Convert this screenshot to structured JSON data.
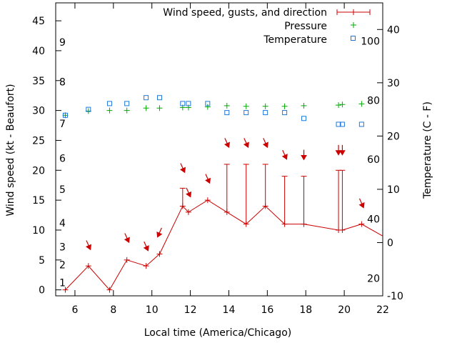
{
  "chart_data": {
    "type": "line",
    "xlabel": "Local time (America/Chicago)",
    "ylabel_left": "Wind speed (kt - Beaufort)",
    "ylabel_right": "Temperature (C - F)",
    "xlim": [
      5,
      22
    ],
    "ylim_left": [
      -1,
      48
    ],
    "ylim_right": [
      -10,
      45
    ],
    "x_ticks": [
      6,
      8,
      10,
      12,
      14,
      16,
      18,
      20,
      22
    ],
    "y_left_ticks": [
      0,
      5,
      10,
      15,
      20,
      25,
      30,
      35,
      40,
      45
    ],
    "y_right_ticks": [
      -10,
      0,
      10,
      20,
      30,
      40
    ],
    "beaufort_labels": [
      {
        "label": "1",
        "wind": 1.2
      },
      {
        "label": "2",
        "wind": 4.2
      },
      {
        "label": "3",
        "wind": 7.2
      },
      {
        "label": "4",
        "wind": 11.2
      },
      {
        "label": "5",
        "wind": 16.8
      },
      {
        "label": "6",
        "wind": 22.0
      },
      {
        "label": "7",
        "wind": 27.8
      },
      {
        "label": "8",
        "wind": 34.8
      },
      {
        "label": "9",
        "wind": 41.4
      }
    ],
    "fahrenheit_labels": [
      {
        "label": "20",
        "tempC": -6.7
      },
      {
        "label": "40",
        "tempC": 4.4
      },
      {
        "label": "60",
        "tempC": 15.6
      },
      {
        "label": "80",
        "tempC": 26.7
      },
      {
        "label": "100",
        "tempC": 37.8
      }
    ],
    "legend": [
      "Wind speed, gusts, and direction",
      "Pressure",
      "Temperature"
    ],
    "legend_position": "top-right",
    "colors": {
      "wind": "#cc0000",
      "pressure": "#00aa00",
      "temperature": "#1e78dc"
    },
    "wind": [
      {
        "x": 5.5,
        "y": 0
      },
      {
        "x": 6.7,
        "y": 4
      },
      {
        "x": 7.8,
        "y": 0
      },
      {
        "x": 8.7,
        "y": 5
      },
      {
        "x": 9.7,
        "y": 4
      },
      {
        "x": 10.4,
        "y": 6
      },
      {
        "x": 11.6,
        "y": 14,
        "gust": 17
      },
      {
        "x": 11.9,
        "y": 13
      },
      {
        "x": 12.9,
        "y": 15
      },
      {
        "x": 13.9,
        "y": 13,
        "gust": 21
      },
      {
        "x": 14.9,
        "y": 11,
        "gust": 21
      },
      {
        "x": 15.9,
        "y": 14,
        "gust": 21
      },
      {
        "x": 16.9,
        "y": 11,
        "gust": 19
      },
      {
        "x": 17.9,
        "y": 11,
        "gust": 19
      },
      {
        "x": 19.7,
        "y": 10,
        "gust": 20
      },
      {
        "x": 19.9,
        "y": 10,
        "gust": 20
      },
      {
        "x": 20.9,
        "y": 11
      },
      {
        "x": 22.0,
        "y": 9
      }
    ],
    "wind_arrows": [
      {
        "x": 6.7,
        "wind": 7.5,
        "dir": "down-right"
      },
      {
        "x": 8.7,
        "wind": 8.7,
        "dir": "down-right"
      },
      {
        "x": 9.7,
        "wind": 7.3,
        "dir": "down-right"
      },
      {
        "x": 10.4,
        "wind": 9.6,
        "dir": "down-left"
      },
      {
        "x": 11.6,
        "wind": 20.4,
        "dir": "down-right"
      },
      {
        "x": 11.9,
        "wind": 16.3,
        "dir": "down-right"
      },
      {
        "x": 12.9,
        "wind": 18.6,
        "dir": "down-right"
      },
      {
        "x": 13.9,
        "wind": 24.6,
        "dir": "down-right"
      },
      {
        "x": 14.9,
        "wind": 24.6,
        "dir": "down-right"
      },
      {
        "x": 15.9,
        "wind": 24.6,
        "dir": "down-right"
      },
      {
        "x": 16.9,
        "wind": 22.6,
        "dir": "down-right"
      },
      {
        "x": 17.9,
        "wind": 22.6,
        "dir": "down"
      },
      {
        "x": 19.7,
        "wind": 23.4,
        "dir": "down"
      },
      {
        "x": 19.9,
        "wind": 23.4,
        "dir": "down"
      },
      {
        "x": 20.9,
        "wind": 14.5,
        "dir": "down-right"
      }
    ],
    "pressure": [
      {
        "x": 5.5,
        "y": 29.2
      },
      {
        "x": 6.7,
        "y": 29.9
      },
      {
        "x": 7.8,
        "y": 30.0
      },
      {
        "x": 8.7,
        "y": 30.0
      },
      {
        "x": 9.7,
        "y": 30.4
      },
      {
        "x": 10.4,
        "y": 30.4
      },
      {
        "x": 11.6,
        "y": 30.5
      },
      {
        "x": 11.9,
        "y": 30.5
      },
      {
        "x": 12.9,
        "y": 30.6
      },
      {
        "x": 13.9,
        "y": 30.8
      },
      {
        "x": 14.9,
        "y": 30.7
      },
      {
        "x": 15.9,
        "y": 30.7
      },
      {
        "x": 16.9,
        "y": 30.7
      },
      {
        "x": 17.9,
        "y": 30.8
      },
      {
        "x": 19.7,
        "y": 30.9
      },
      {
        "x": 19.9,
        "y": 31.0
      },
      {
        "x": 20.9,
        "y": 31.1
      }
    ],
    "temperature": [
      {
        "x": 5.5,
        "y": 23.9
      },
      {
        "x": 6.7,
        "y": 25.0
      },
      {
        "x": 7.8,
        "y": 26.1
      },
      {
        "x": 8.7,
        "y": 26.1
      },
      {
        "x": 9.7,
        "y": 27.2
      },
      {
        "x": 10.4,
        "y": 27.2
      },
      {
        "x": 11.6,
        "y": 26.1
      },
      {
        "x": 11.9,
        "y": 26.1
      },
      {
        "x": 12.9,
        "y": 26.1
      },
      {
        "x": 13.9,
        "y": 24.4
      },
      {
        "x": 14.9,
        "y": 24.4
      },
      {
        "x": 15.9,
        "y": 24.4
      },
      {
        "x": 16.9,
        "y": 24.4
      },
      {
        "x": 17.9,
        "y": 23.3
      },
      {
        "x": 19.7,
        "y": 22.2
      },
      {
        "x": 19.9,
        "y": 22.2
      },
      {
        "x": 20.9,
        "y": 22.2
      }
    ]
  }
}
